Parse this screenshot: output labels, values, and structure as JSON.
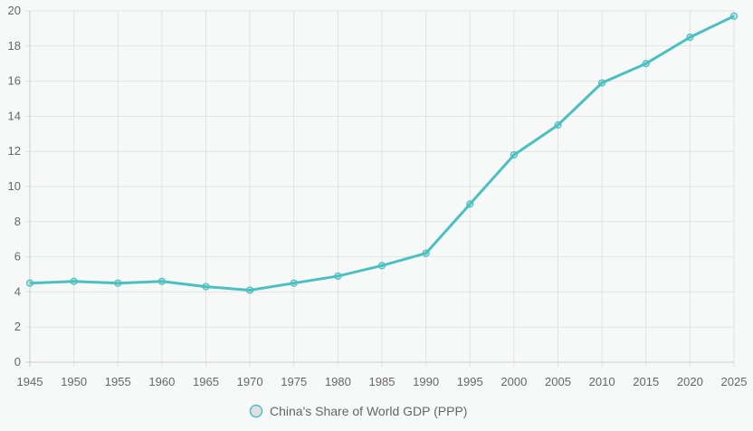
{
  "chart_data": {
    "type": "line",
    "title": "",
    "xlabel": "",
    "ylabel": "",
    "x": [
      1945,
      1950,
      1955,
      1960,
      1965,
      1970,
      1975,
      1980,
      1985,
      1990,
      1995,
      2000,
      2005,
      2010,
      2015,
      2020,
      2025
    ],
    "series": [
      {
        "name": "China's Share of World GDP (PPP)",
        "values": [
          4.5,
          4.6,
          4.5,
          4.6,
          4.3,
          4.1,
          4.5,
          4.9,
          5.5,
          6.2,
          9.0,
          11.8,
          13.5,
          15.9,
          17.0,
          18.5,
          19.7
        ],
        "color": "#4bc0c0"
      }
    ],
    "ylim": [
      0,
      20
    ],
    "yticks": [
      "0",
      "2",
      "4",
      "6",
      "8",
      "10",
      "12",
      "14",
      "16",
      "18",
      "20"
    ],
    "xticks": [
      "1945",
      "1950",
      "1955",
      "1960",
      "1965",
      "1970",
      "1975",
      "1980",
      "1985",
      "1990",
      "1995",
      "2000",
      "2005",
      "2010",
      "2015",
      "2020",
      "2025"
    ],
    "grid": true,
    "legend_position": "bottom"
  }
}
